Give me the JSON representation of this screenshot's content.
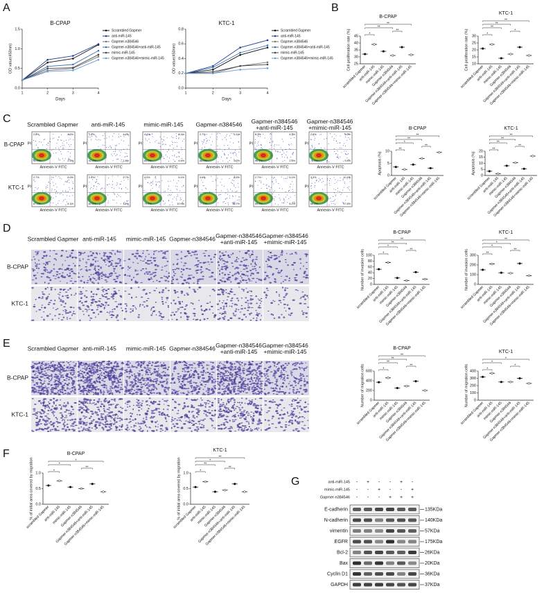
{
  "panels": [
    "A",
    "B",
    "C",
    "D",
    "E",
    "F",
    "G"
  ],
  "chart_data": [
    {
      "type": "line",
      "title": "B-CPAP",
      "xlabel": "Days",
      "ylabel": "OD value(450nm)",
      "x": [
        1,
        2,
        3,
        4
      ],
      "xlim": [
        1,
        4
      ],
      "xticks": [
        1,
        2,
        3,
        4
      ],
      "ylim": [
        0,
        1.5
      ],
      "yticks": [
        {
          "value": 0,
          "label": "0.0"
        },
        {
          "value": 0.5,
          "label": "0.5"
        },
        {
          "value": 1,
          "label": "1.0"
        },
        {
          "value": 1.5,
          "label": "1.5"
        }
      ],
      "series": [
        {
          "name": "Scrambled Gapmer",
          "color": "#111111",
          "values": [
            0.2,
            0.65,
            0.75,
            1.1
          ]
        },
        {
          "name": "anti-miR-145",
          "color": "#1f3f8f",
          "values": [
            0.2,
            0.72,
            0.82,
            1.12
          ]
        },
        {
          "name": "Gapmer-n384546",
          "color": "#777777",
          "values": [
            0.2,
            0.45,
            0.5,
            0.8
          ]
        },
        {
          "name": "Gapmer-n384546+anti-miR-145",
          "color": "#3c6fb5",
          "values": [
            0.2,
            0.55,
            0.6,
            0.95
          ]
        },
        {
          "name": "mimic-miR-145",
          "color": "#444444",
          "values": [
            0.2,
            0.5,
            0.52,
            0.85
          ]
        },
        {
          "name": "Gapmer-n384546+mimic-miR-145",
          "color": "#6b9bd8",
          "values": [
            0.2,
            0.42,
            0.45,
            0.72
          ]
        }
      ]
    },
    {
      "type": "line",
      "title": "KTC-1",
      "xlabel": "Days",
      "ylabel": "OD value(450nm)",
      "x": [
        1,
        2,
        3,
        4
      ],
      "xlim": [
        1,
        4
      ],
      "xticks": [
        1,
        2,
        3,
        4
      ],
      "ylim": [
        0,
        0.8
      ],
      "yticks": [
        {
          "value": 0,
          "label": "0.0"
        },
        {
          "value": 0.2,
          "label": "0.2"
        },
        {
          "value": 0.4,
          "label": "0.4"
        },
        {
          "value": 0.6,
          "label": "0.6"
        },
        {
          "value": 0.8,
          "label": "0.8"
        }
      ],
      "series": [
        {
          "name": "Scrambled Gapmer",
          "color": "#111111",
          "values": [
            0.2,
            0.25,
            0.45,
            0.55
          ]
        },
        {
          "name": "anti-miR-145",
          "color": "#1f3f8f",
          "values": [
            0.2,
            0.3,
            0.55,
            0.65
          ]
        },
        {
          "name": "Gapmer-n384546",
          "color": "#777777",
          "values": [
            0.2,
            0.2,
            0.3,
            0.35
          ]
        },
        {
          "name": "Gapmer-n384546+anti-miR-145",
          "color": "#3c6fb5",
          "values": [
            0.2,
            0.28,
            0.48,
            0.58
          ]
        },
        {
          "name": "mimic-miR-145",
          "color": "#444444",
          "values": [
            0.2,
            0.22,
            0.3,
            0.32
          ]
        },
        {
          "name": "Gapmer-n384546+mimic-miR-145",
          "color": "#6b9bd8",
          "values": [
            0.2,
            0.2,
            0.25,
            0.27
          ]
        }
      ]
    },
    {
      "type": "dot",
      "title": "B-CPAP",
      "ylabel": "Cell proliferation rate (%)",
      "ylim": [
        25,
        45
      ],
      "yticks": [
        25,
        30,
        35,
        40,
        45
      ],
      "categories": [
        "scrambled Gapmer",
        "anti-miR-145",
        "mimic-miR-145",
        "Gapmer-n384546",
        "Gapmer-n384546+anti-miR-145",
        "Gapmer-n384546+mimic-miR-145"
      ],
      "values": [
        32,
        39,
        34,
        31,
        37,
        31.5
      ],
      "comparisons": [
        {
          "groups": [
            0,
            1
          ],
          "label": "*"
        },
        {
          "groups": [
            3,
            4
          ],
          "label": "**"
        },
        {
          "groups": [
            0,
            3
          ],
          "label": "**"
        },
        {
          "groups": [
            0,
            5
          ],
          "label": "**"
        }
      ]
    },
    {
      "type": "dot",
      "title": "KTC-1",
      "ylabel": "Cell proliferation rate (%)",
      "ylim": [
        10,
        30
      ],
      "yticks": [
        10,
        15,
        20,
        25,
        30
      ],
      "categories": [
        "scrambled Gapmer",
        "anti-miR-145",
        "mimic-miR-145",
        "Gapmer-n384546",
        "Gapmer-n384546+anti-miR-145",
        "Gapmer-n384546+mimic-miR-145"
      ],
      "values": [
        21,
        24,
        14,
        17,
        22,
        16
      ],
      "comparisons": [
        {
          "groups": [
            0,
            1
          ],
          "label": "*"
        },
        {
          "groups": [
            3,
            4
          ],
          "label": "*"
        },
        {
          "groups": [
            0,
            2
          ],
          "label": "**"
        },
        {
          "groups": [
            0,
            3
          ],
          "label": "**"
        },
        {
          "groups": [
            0,
            5
          ],
          "label": "**"
        }
      ]
    },
    {
      "type": "dot",
      "title": "B-CPAP",
      "ylabel": "Apoptosis (%)",
      "ylim": [
        0,
        10
      ],
      "yticks": [
        0,
        5,
        10
      ],
      "categories": [
        "scrambled Gapmer",
        "anti-miR-145",
        "mimic-miR-145",
        "Gapmer-n384546",
        "Gapmer-n384546+anti-miR-145",
        "Gapmer-n384546+mimic-miR-145"
      ],
      "values": [
        3.5,
        2.5,
        4.5,
        7,
        3,
        9.5
      ],
      "comparisons": [
        {
          "groups": [
            0,
            1
          ],
          "label": "**"
        },
        {
          "groups": [
            3,
            4
          ],
          "label": "**"
        },
        {
          "groups": [
            0,
            2
          ],
          "label": "*"
        },
        {
          "groups": [
            0,
            3
          ],
          "label": "**"
        },
        {
          "groups": [
            0,
            5
          ],
          "label": "**"
        }
      ]
    },
    {
      "type": "dot",
      "title": "KTC-1",
      "ylabel": "Apoptosis (%)",
      "ylim": [
        0,
        20
      ],
      "yticks": [
        0,
        5,
        10,
        15,
        20
      ],
      "categories": [
        "scrambled Gapmer",
        "anti-miR-145",
        "mimic-miR-145",
        "Gapmer-n384546",
        "Gapmer-n384546+anti-miR-145",
        "Gapmer-n384546+mimic-miR-145"
      ],
      "values": [
        3.5,
        1.5,
        8,
        10.5,
        5.5,
        16
      ],
      "comparisons": [
        {
          "groups": [
            0,
            1
          ],
          "label": "**"
        },
        {
          "groups": [
            3,
            4
          ],
          "label": "**"
        },
        {
          "groups": [
            0,
            2
          ],
          "label": "**"
        },
        {
          "groups": [
            0,
            3
          ],
          "label": "**"
        },
        {
          "groups": [
            0,
            5
          ],
          "label": "**"
        }
      ]
    },
    {
      "type": "dot",
      "title": "B-CPAP",
      "ylabel": "Number of invasion cells",
      "ylim": [
        0,
        100
      ],
      "yticks": [
        0,
        20,
        40,
        60,
        80,
        100
      ],
      "categories": [
        "scrambled Gapmer",
        "anti-miR-145",
        "mimic-miR-145",
        "Gapmer-n384546",
        "Gapmer-n384546+anti-miR-145",
        "Gapmer-n384546+mimic-miR-145"
      ],
      "values": [
        52,
        75,
        22,
        13,
        42,
        18
      ],
      "comparisons": [
        {
          "groups": [
            0,
            1
          ],
          "label": "*"
        },
        {
          "groups": [
            3,
            4
          ],
          "label": "**"
        },
        {
          "groups": [
            0,
            2
          ],
          "label": "*"
        },
        {
          "groups": [
            0,
            3
          ],
          "label": "**"
        },
        {
          "groups": [
            0,
            5
          ],
          "label": "**"
        }
      ]
    },
    {
      "type": "dot",
      "title": "KTC-1",
      "ylabel": "Number of invasion cells",
      "ylim": [
        0,
        300
      ],
      "yticks": [
        0,
        100,
        200,
        300
      ],
      "categories": [
        "scrambled Gapmer",
        "anti-miR-145",
        "mimic-miR-145",
        "Gapmer-n384546",
        "Gapmer-n384546+anti-miR-145",
        "Gapmer-n384546+mimic-miR-145"
      ],
      "values": [
        150,
        210,
        120,
        115,
        215,
        90
      ],
      "comparisons": [
        {
          "groups": [
            0,
            1
          ],
          "label": "**"
        },
        {
          "groups": [
            3,
            4
          ],
          "label": "**"
        },
        {
          "groups": [
            0,
            2
          ],
          "label": "*"
        },
        {
          "groups": [
            0,
            3
          ],
          "label": "*"
        },
        {
          "groups": [
            0,
            5
          ],
          "label": "**"
        }
      ]
    },
    {
      "type": "dot",
      "title": "B-CPAP",
      "ylabel": "Number of migration cells",
      "ylim": [
        0,
        600
      ],
      "yticks": [
        0,
        200,
        400,
        600
      ],
      "categories": [
        "scrambled Gapmer",
        "anti-miR-145",
        "mimic-miR-145",
        "Gapmer-n384546",
        "Gapmer-n384546+anti-miR-145",
        "Gapmer-n384546+mimic-miR-145"
      ],
      "values": [
        370,
        460,
        250,
        290,
        390,
        200
      ],
      "comparisons": [
        {
          "groups": [
            0,
            1
          ],
          "label": "*"
        },
        {
          "groups": [
            3,
            4
          ],
          "label": "**"
        },
        {
          "groups": [
            0,
            2
          ],
          "label": "**"
        },
        {
          "groups": [
            0,
            3
          ],
          "label": "**"
        },
        {
          "groups": [
            0,
            5
          ],
          "label": "**"
        }
      ]
    },
    {
      "type": "dot",
      "title": "KTC-1",
      "ylabel": "Number of migration cells",
      "ylim": [
        0,
        400
      ],
      "yticks": [
        0,
        100,
        200,
        300,
        400
      ],
      "categories": [
        "scrambled Gapmer",
        "anti-miR-145",
        "mimic-miR-145",
        "Gapmer-n384546",
        "Gapmer-n384546+anti-miR-145",
        "Gapmer-n384546+mimic-miR-145"
      ],
      "values": [
        320,
        370,
        250,
        250,
        300,
        230
      ],
      "comparisons": [
        {
          "groups": [
            0,
            1
          ],
          "label": "*"
        },
        {
          "groups": [
            3,
            4
          ],
          "label": "*"
        },
        {
          "groups": [
            0,
            2
          ],
          "label": "*"
        },
        {
          "groups": [
            0,
            5
          ],
          "label": "*"
        }
      ]
    },
    {
      "type": "dot",
      "title": "B-CPAP",
      "ylabel": "% of initial area covered by migration",
      "ylim": [
        0,
        1
      ],
      "yticks": [
        {
          "value": 0,
          "label": "0.0"
        },
        {
          "value": 0.5,
          "label": "0.5"
        },
        {
          "value": 1,
          "label": "1.0"
        }
      ],
      "categories": [
        "scrambled Gapmer",
        "anti-miR-145",
        "mimic-miR-145",
        "Gapmer-n384546",
        "Gapmer-n384546+anti-miR-145",
        "Gapmer-n384546+mimic-miR-145"
      ],
      "values": [
        0.6,
        0.75,
        0.55,
        0.5,
        0.65,
        0.4
      ],
      "comparisons": [
        {
          "groups": [
            0,
            1
          ],
          "label": "*"
        },
        {
          "groups": [
            3,
            4
          ],
          "label": "**"
        },
        {
          "groups": [
            0,
            2
          ],
          "label": "*"
        },
        {
          "groups": [
            0,
            5
          ],
          "label": "*"
        }
      ]
    },
    {
      "type": "dot",
      "title": "KTC-1",
      "ylabel": "% of initial area covered by migration",
      "ylim": [
        0,
        1
      ],
      "yticks": [
        {
          "value": 0,
          "label": "0.0"
        },
        {
          "value": 0.5,
          "label": "0.5"
        },
        {
          "value": 1,
          "label": "1.0"
        }
      ],
      "categories": [
        "scrambled Gapmer",
        "anti-miR-145",
        "mimic-miR-145",
        "Gapmer-n384546",
        "Gapmer-n384546+anti-miR-145",
        "Gapmer-n384546+mimic-miR-145"
      ],
      "values": [
        0.55,
        0.72,
        0.4,
        0.45,
        0.65,
        0.4
      ],
      "comparisons": [
        {
          "groups": [
            0,
            1
          ],
          "label": "*"
        },
        {
          "groups": [
            3,
            4
          ],
          "label": "**"
        },
        {
          "groups": [
            0,
            2
          ],
          "label": "**"
        },
        {
          "groups": [
            0,
            3
          ],
          "label": "*"
        },
        {
          "groups": [
            0,
            5
          ],
          "label": "**"
        }
      ]
    }
  ],
  "flow": {
    "columns": [
      [
        "Scrambled Gapmer"
      ],
      [
        "anti-miR-145"
      ],
      [
        "mimic-miR-145"
      ],
      [
        "Gapmer-n384546"
      ],
      [
        "Gapmer-n384546",
        "+anti-miR-145"
      ],
      [
        "Gapmer-n384546",
        "+mimic-miR-145"
      ]
    ],
    "rows": [
      "B-CPAP",
      "KTC-1"
    ],
    "ylabel": "PI",
    "xlabel": "Annexin-V FITC",
    "quadrants": [
      [
        [
          "2.6%",
          "4.2%",
          "90.9%",
          "2.3%"
        ],
        [
          "1.4%",
          "4.0%",
          "92.8%",
          "1.8%"
        ],
        [
          "4.1%",
          "6.1%",
          "85.2%",
          "4.6%"
        ],
        [
          "2.7%",
          "5.1%",
          "86.0%",
          "6.2%"
        ],
        [
          "3.3%",
          "4.2%",
          "90.1%",
          "2.4%"
        ],
        [
          "2.8%",
          "9.0%",
          "78.4%",
          "9.8%"
        ]
      ],
      [
        [
          "2.7%",
          "6.0%",
          "87.2%",
          "4.1%"
        ],
        [
          "2.4%",
          "2.7%",
          "92.8%",
          "1.6%"
        ],
        [
          "4.0%",
          "6.1%",
          "79.0%",
          "10.9%"
        ],
        [
          "3.6%",
          "8.5%",
          "77.2%",
          "10.7%"
        ],
        [
          "2.7%",
          "6.1%",
          "85.0%",
          "6.2%"
        ],
        [
          "3.3%",
          "10.4%",
          "68.2%",
          "17.9%"
        ]
      ]
    ]
  },
  "invasion": {
    "columns": [
      [
        "Scrambled Gapmer"
      ],
      [
        "anti-miR-145"
      ],
      [
        "mimic-miR-145"
      ],
      [
        "Gapmer-n384546"
      ],
      [
        "Gapmer-n384546",
        "+anti-miR-145"
      ],
      [
        "Gapmer-n384546",
        "+mimic-miR-145"
      ]
    ],
    "rows": [
      "B-CPAP",
      "KTC-1"
    ]
  },
  "migration": {
    "columns": [
      [
        "Scrambled Gapmer"
      ],
      [
        "anti-miR-145"
      ],
      [
        "mimic-miR-145"
      ],
      [
        "Gapmer-n384546"
      ],
      [
        "Gapmer-n384546",
        "+anti-miR-145"
      ],
      [
        "Gapmer-n384546",
        "+mimic-miR-145"
      ]
    ],
    "rows": [
      "B-CPAP",
      "KTC-1"
    ]
  },
  "western": {
    "treatments": [
      {
        "name": "anti-miR-145",
        "signs": [
          "-",
          "+",
          "-",
          "-",
          "+",
          "-"
        ]
      },
      {
        "name": "mimic-miR-145",
        "signs": [
          "-",
          "-",
          "+",
          "-",
          "-",
          "+"
        ]
      },
      {
        "name": "Gapmer-n384546",
        "signs": [
          "-",
          "-",
          "-",
          "+",
          "+",
          "+"
        ]
      }
    ],
    "proteins": [
      {
        "name": "E-cadherin",
        "size": "135KDa"
      },
      {
        "name": "N-cadherin",
        "size": "140KDa"
      },
      {
        "name": "vimentin",
        "size": "57KDa"
      },
      {
        "name": "EGFR",
        "size": "175KDa"
      },
      {
        "name": "Bcl-2",
        "size": "26KDa"
      },
      {
        "name": "Bax",
        "size": "20KDa"
      },
      {
        "name": "Cyclin D1",
        "size": "36KDa"
      },
      {
        "name": "GAPDH",
        "size": "37KDa"
      }
    ]
  }
}
